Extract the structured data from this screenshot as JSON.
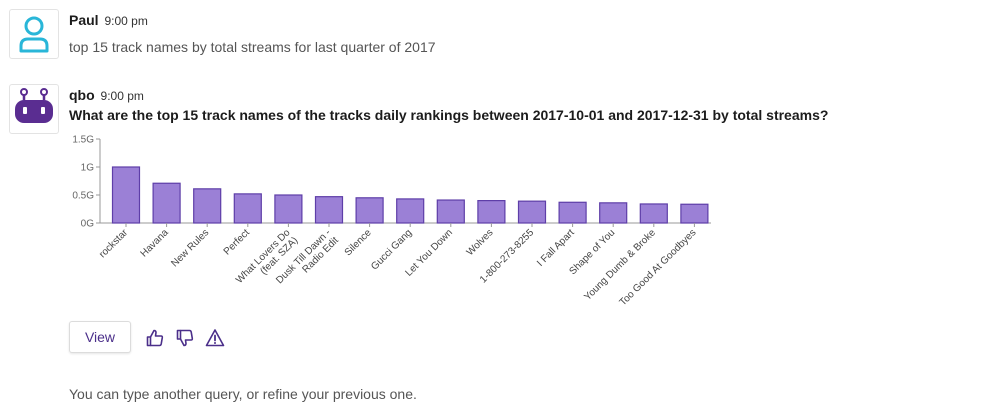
{
  "user_message": {
    "author": "Paul",
    "time": "9:00 pm",
    "text": "top 15 track names by total streams for last quarter of 2017",
    "avatar_icon": "user-icon",
    "avatar_color": "#29b6d8"
  },
  "bot_message": {
    "author": "qbo",
    "time": "9:00 pm",
    "title": "What are the top 15 track names of the tracks daily rankings between 2017-10-01 and 2017-12-31 by total streams?",
    "avatar_icon": "robot-icon",
    "avatar_color": "#5a2d91"
  },
  "chart_data": {
    "type": "bar",
    "title": "",
    "xlabel": "",
    "ylabel": "",
    "ylim": [
      0,
      1500000000
    ],
    "yticks": [
      {
        "value": 0,
        "label": "0G"
      },
      {
        "value": 500000000,
        "label": "0.5G"
      },
      {
        "value": 1000000000,
        "label": "1G"
      },
      {
        "value": 1500000000,
        "label": "1.5G"
      }
    ],
    "grid": false,
    "bar_color": "#9b80d6",
    "bar_edge_color": "#5e3ea8",
    "categories": [
      [
        "rockstar"
      ],
      [
        "Havana"
      ],
      [
        "New Rules"
      ],
      [
        "Perfect"
      ],
      [
        "What Lovers Do",
        "(feat. SZA)"
      ],
      [
        "Dusk Till Dawn -",
        "Radio Edit"
      ],
      [
        "Silence"
      ],
      [
        "Gucci Gang"
      ],
      [
        "Let You Down"
      ],
      [
        "Wolves"
      ],
      [
        "1-800-273-8255"
      ],
      [
        "I Fall Apart"
      ],
      [
        "Shape of You"
      ],
      [
        "Young Dumb & Broke"
      ],
      [
        "Too Good At Goodbyes"
      ]
    ],
    "values": [
      1000000000,
      710000000,
      610000000,
      520000000,
      500000000,
      470000000,
      450000000,
      430000000,
      410000000,
      400000000,
      390000000,
      370000000,
      360000000,
      340000000,
      335000000
    ]
  },
  "actions": {
    "view_label": "View",
    "thumbs_up_icon": "thumbs-up-icon",
    "thumbs_down_icon": "thumbs-down-icon",
    "warning_icon": "warning-icon",
    "icon_color": "#4b2f8a"
  },
  "footer": {
    "note": "You can type another query, or refine your previous one."
  }
}
